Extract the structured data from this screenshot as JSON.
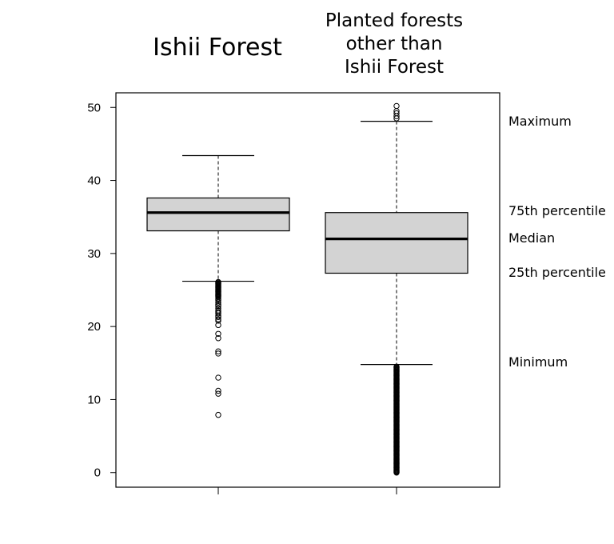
{
  "chart_data": {
    "type": "box",
    "yticks": [
      0,
      10,
      20,
      30,
      40,
      50
    ],
    "ylim": [
      -2,
      52
    ],
    "grid": false,
    "box_fill": "#d3d3d3",
    "groups": [
      {
        "title_lines": [
          "Ishii Forest"
        ],
        "stats": {
          "min": 26.2,
          "q1": 33.1,
          "median": 35.6,
          "q3": 37.6,
          "max": 43.4
        },
        "outliers_high": [],
        "outliers_low": [
          26.1,
          26.0,
          25.9,
          25.8,
          25.7,
          25.6,
          25.5,
          25.4,
          25.3,
          25.2,
          25.1,
          25.0,
          24.9,
          24.8,
          24.7,
          24.6,
          24.5,
          24.4,
          24.3,
          24.2,
          24.1,
          24.0,
          23.8,
          23.6,
          23.3,
          23.0,
          22.8,
          22.5,
          22.2,
          22.0,
          21.8,
          21.5,
          21.3,
          21.0,
          20.8,
          20.2,
          19.0,
          18.4,
          16.6,
          16.3,
          13.0,
          11.2,
          10.8,
          7.9
        ]
      },
      {
        "title_lines": [
          "Planted forests",
          "other than",
          "Ishii Forest"
        ],
        "stats": {
          "min": 14.8,
          "q1": 27.3,
          "median": 32.0,
          "q3": 35.6,
          "max": 48.1
        },
        "outliers_high": [
          48.5,
          48.8,
          49.2,
          49.5,
          50.2
        ],
        "outliers_low_range": [
          0.0,
          14.5
        ]
      }
    ],
    "annotations": [
      {
        "text": "Maximum",
        "y": 48.1
      },
      {
        "text": "75th percentile",
        "y": 35.8
      },
      {
        "text": "Median",
        "y": 32.1
      },
      {
        "text": "25th percentile",
        "y": 27.4
      },
      {
        "text": "Minimum",
        "y": 15.1
      }
    ]
  }
}
